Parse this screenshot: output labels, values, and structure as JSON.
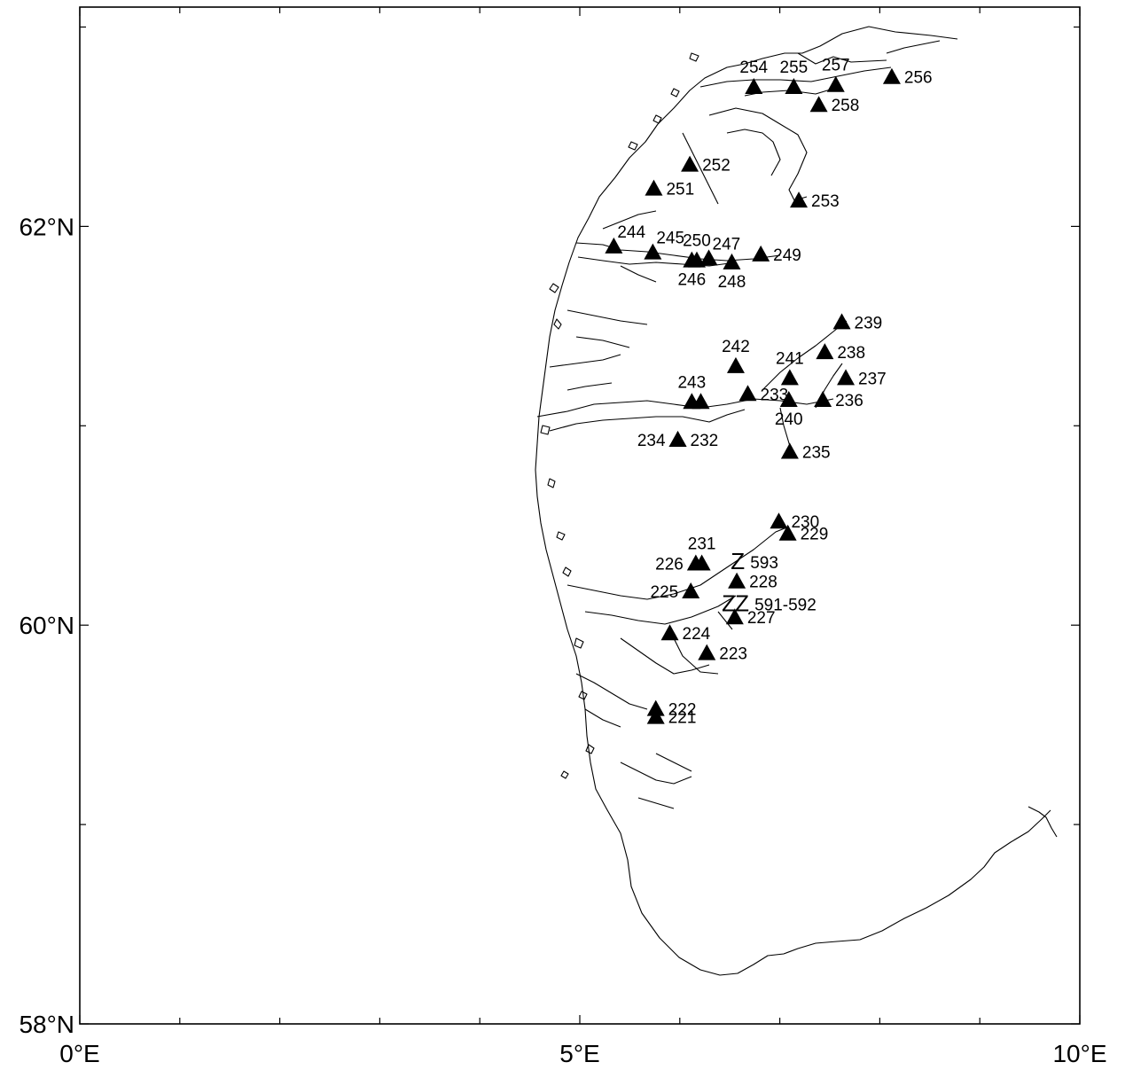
{
  "map": {
    "x_ticks": [
      {
        "lon": 0,
        "label": "0°E"
      },
      {
        "lon": 5,
        "label": "5°E"
      },
      {
        "lon": 10,
        "label": "10°E"
      }
    ],
    "y_ticks": [
      {
        "lat": 58,
        "label": "58°N"
      },
      {
        "lat": 60,
        "label": "60°N"
      },
      {
        "lat": 62,
        "label": "62°N"
      }
    ],
    "minor_x_ticks": [
      1,
      2,
      3,
      4,
      6,
      7,
      8,
      9
    ],
    "minor_y_ticks": [
      59,
      61,
      63
    ],
    "extent": {
      "lon": [
        0,
        10
      ],
      "lat": [
        58,
        63.1
      ]
    },
    "marker_legend_note": "",
    "stations": [
      {
        "id": "221",
        "label": "221",
        "lon": 5.76,
        "lat": 59.54,
        "anchor": "right"
      },
      {
        "id": "222",
        "label": "222",
        "lon": 5.76,
        "lat": 59.58,
        "anchor": "right"
      },
      {
        "id": "223",
        "label": "223",
        "lon": 6.27,
        "lat": 59.86,
        "anchor": "right"
      },
      {
        "id": "224",
        "label": "224",
        "lon": 5.9,
        "lat": 59.96,
        "anchor": "right"
      },
      {
        "id": "225",
        "label": "225",
        "lon": 6.11,
        "lat": 60.17,
        "anchor": "left"
      },
      {
        "id": "226",
        "label": "226",
        "lon": 6.16,
        "lat": 60.31,
        "anchor": "left"
      },
      {
        "id": "231",
        "label": "231",
        "lon": 6.22,
        "lat": 60.31,
        "anchor": "top"
      },
      {
        "id": "227",
        "label": "227",
        "lon": 6.55,
        "lat": 60.04,
        "anchor": "right"
      },
      {
        "id": "228",
        "label": "228",
        "lon": 6.57,
        "lat": 60.22,
        "anchor": "right"
      },
      {
        "id": "229",
        "label": "229",
        "lon": 7.08,
        "lat": 60.46,
        "anchor": "right"
      },
      {
        "id": "230",
        "label": "230",
        "lon": 6.99,
        "lat": 60.52,
        "anchor": "right"
      },
      {
        "id": "232",
        "label": "232",
        "lon": 5.98,
        "lat": 60.93,
        "anchor": "right"
      },
      {
        "id": "234",
        "label": "234",
        "lon": 5.98,
        "lat": 60.93,
        "anchor": "left"
      },
      {
        "id": "243a",
        "label": "243",
        "lon": 6.12,
        "lat": 61.12,
        "anchor": "top"
      },
      {
        "id": "243b",
        "label": "",
        "lon": 6.21,
        "lat": 61.12,
        "anchor": "none"
      },
      {
        "id": "233",
        "label": "233",
        "lon": 6.68,
        "lat": 61.16,
        "anchor": "right"
      },
      {
        "id": "242",
        "label": "242",
        "lon": 6.56,
        "lat": 61.3,
        "anchor": "top"
      },
      {
        "id": "241",
        "label": "241",
        "lon": 7.1,
        "lat": 61.24,
        "anchor": "top"
      },
      {
        "id": "240",
        "label": "240",
        "lon": 7.09,
        "lat": 61.13,
        "anchor": "bottom"
      },
      {
        "id": "235",
        "label": "235",
        "lon": 7.1,
        "lat": 60.87,
        "anchor": "right"
      },
      {
        "id": "236",
        "label": "236",
        "lon": 7.43,
        "lat": 61.13,
        "anchor": "right"
      },
      {
        "id": "237",
        "label": "237",
        "lon": 7.66,
        "lat": 61.24,
        "anchor": "right"
      },
      {
        "id": "238",
        "label": "238",
        "lon": 7.45,
        "lat": 61.37,
        "anchor": "right"
      },
      {
        "id": "239",
        "label": "239",
        "lon": 7.62,
        "lat": 61.52,
        "anchor": "right"
      },
      {
        "id": "244",
        "label": "244",
        "lon": 5.34,
        "lat": 61.9,
        "anchor": "topright"
      },
      {
        "id": "245",
        "label": "245",
        "lon": 5.73,
        "lat": 61.87,
        "anchor": "topright"
      },
      {
        "id": "246",
        "label": "246",
        "lon": 6.12,
        "lat": 61.83,
        "anchor": "bottom"
      },
      {
        "id": "250",
        "label": "250",
        "lon": 6.17,
        "lat": 61.83,
        "anchor": "top"
      },
      {
        "id": "247",
        "label": "247",
        "lon": 6.29,
        "lat": 61.84,
        "anchor": "topright"
      },
      {
        "id": "248",
        "label": "248",
        "lon": 6.52,
        "lat": 61.82,
        "anchor": "bottom"
      },
      {
        "id": "249",
        "label": "249",
        "lon": 6.81,
        "lat": 61.86,
        "anchor": "right"
      },
      {
        "id": "251",
        "label": "251",
        "lon": 5.74,
        "lat": 62.19,
        "anchor": "right"
      },
      {
        "id": "252",
        "label": "252",
        "lon": 6.1,
        "lat": 62.31,
        "anchor": "right"
      },
      {
        "id": "253",
        "label": "253",
        "lon": 7.19,
        "lat": 62.13,
        "anchor": "right"
      },
      {
        "id": "254",
        "label": "254",
        "lon": 6.74,
        "lat": 62.7,
        "anchor": "top"
      },
      {
        "id": "255",
        "label": "255",
        "lon": 7.14,
        "lat": 62.7,
        "anchor": "top"
      },
      {
        "id": "257",
        "label": "257",
        "lon": 7.56,
        "lat": 62.71,
        "anchor": "top"
      },
      {
        "id": "256",
        "label": "256",
        "lon": 8.12,
        "lat": 62.75,
        "anchor": "right"
      },
      {
        "id": "258",
        "label": "258",
        "lon": 7.39,
        "lat": 62.61,
        "anchor": "right"
      }
    ],
    "z_markers": [
      {
        "id": "593",
        "label": "593",
        "lon": 6.58,
        "lat": 60.32,
        "count": 1
      },
      {
        "id": "591-592",
        "label": "591-592",
        "lon": 6.49,
        "lat": 60.11,
        "count": 2
      }
    ],
    "z_glyph": "Z"
  }
}
